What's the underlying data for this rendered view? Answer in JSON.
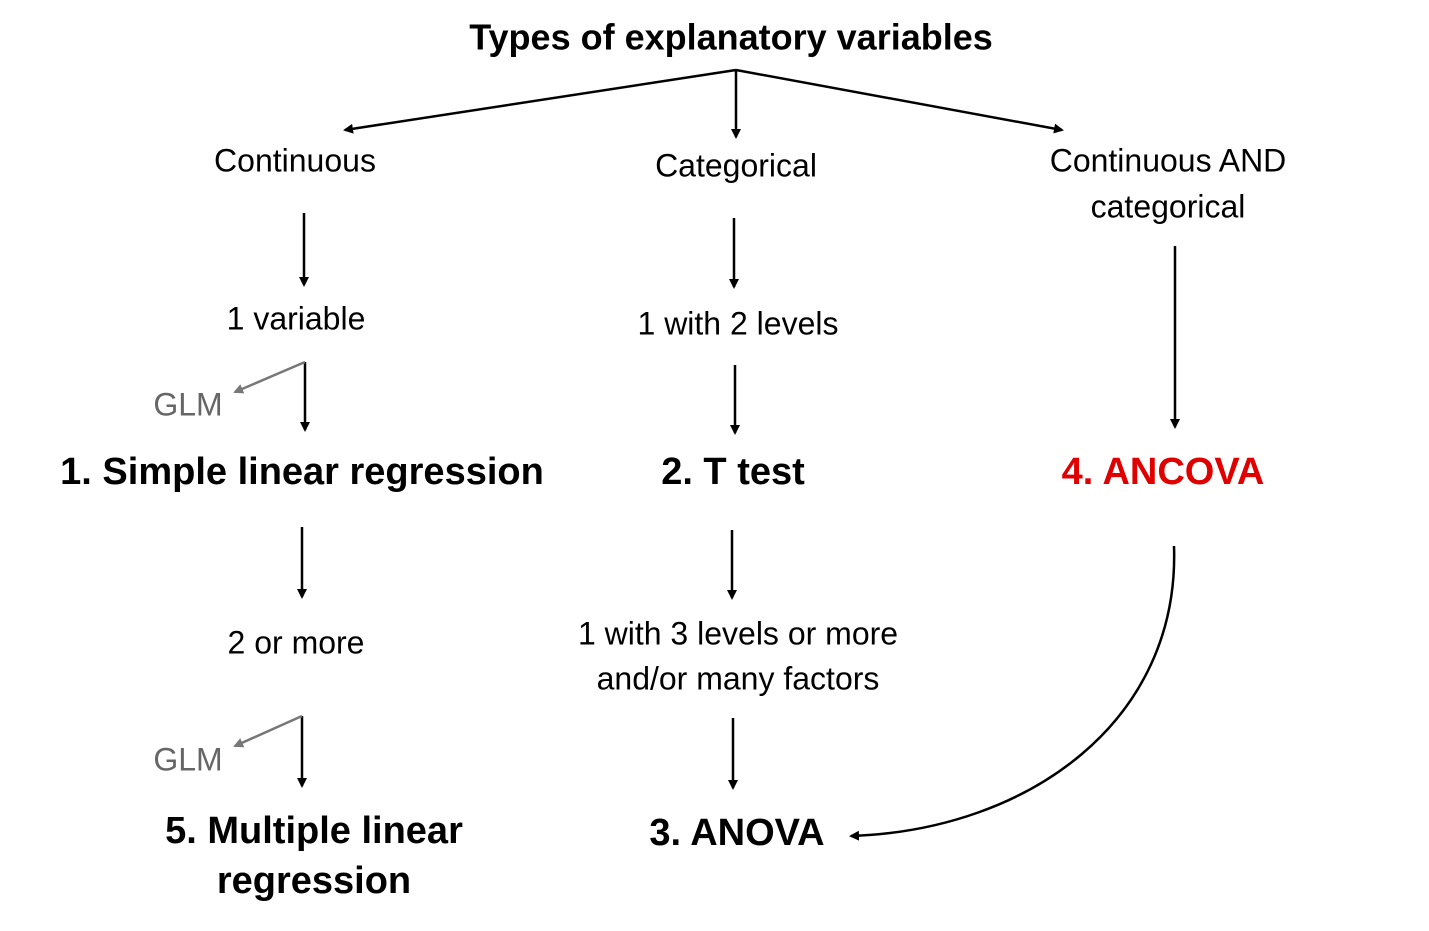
{
  "title": "Types of explanatory variables",
  "nodes": [
    {
      "lines": [
        "Continuous"
      ]
    },
    {
      "lines": [
        "Categorical"
      ]
    },
    {
      "lines": [
        "Continuous AND",
        "categorical"
      ]
    },
    {
      "lines": [
        "1 variable"
      ]
    },
    {
      "lines": [
        "1 with 2 levels"
      ]
    },
    {
      "lines": [
        "GLM"
      ]
    },
    {
      "lines": [
        "1. Simple linear regression"
      ]
    },
    {
      "lines": [
        "2. T test"
      ]
    },
    {
      "lines": [
        "4. ANCOVA"
      ]
    },
    {
      "lines": [
        "2 or more"
      ]
    },
    {
      "lines": [
        "1 with 3 levels or more",
        "and/or many factors"
      ]
    },
    {
      "lines": [
        "GLM"
      ]
    },
    {
      "lines": [
        "5. Multiple linear",
        "regression"
      ]
    },
    {
      "lines": [
        "3. ANOVA"
      ]
    }
  ]
}
